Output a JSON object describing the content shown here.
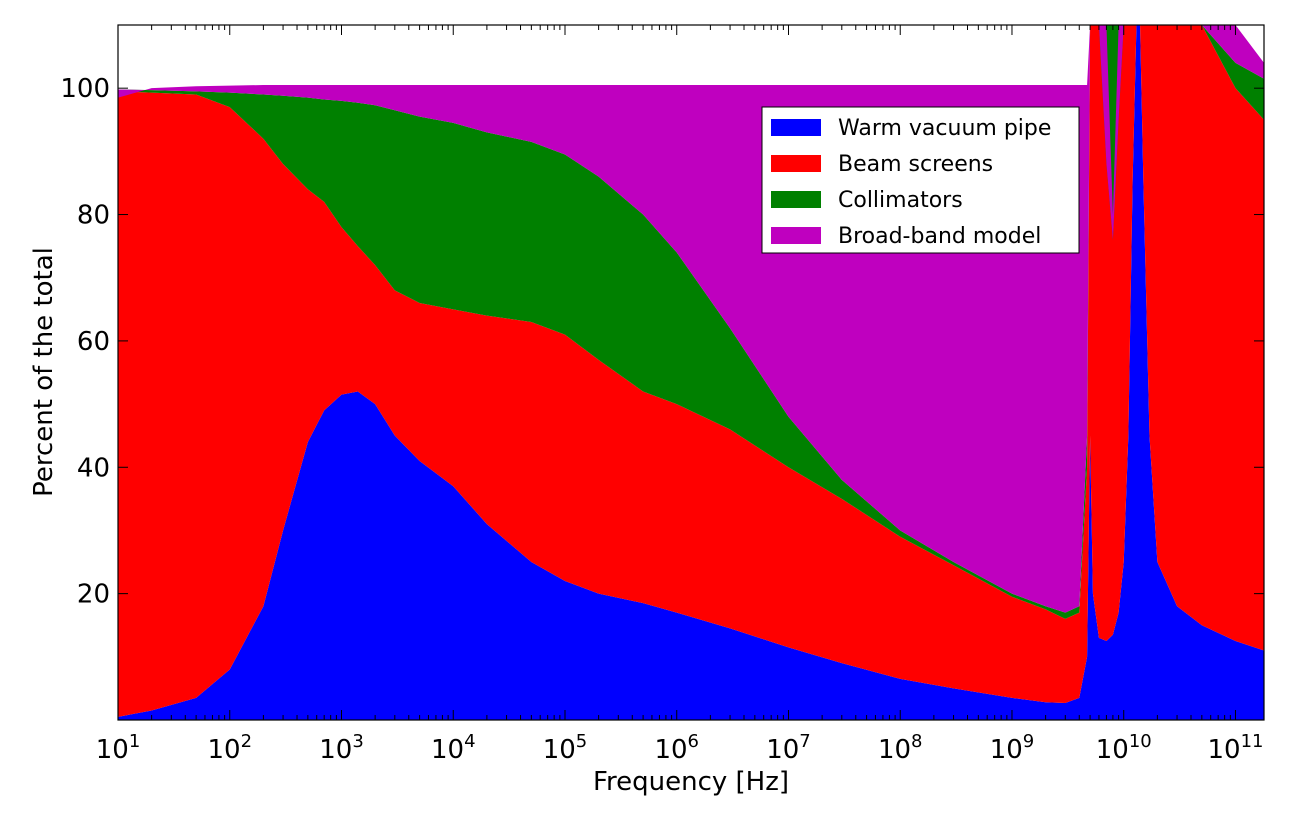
{
  "chart_data": {
    "type": "area",
    "stacked": true,
    "title": "",
    "xlabel": "Frequency [Hz]",
    "ylabel": "Percent of the total",
    "xscale": "log",
    "xlim": [
      10,
      180000000000
    ],
    "ylim": [
      0,
      110
    ],
    "grid": false,
    "legend_position": "upper-right",
    "x_ticks": [
      {
        "base": "10",
        "exp": "1"
      },
      {
        "base": "10",
        "exp": "2"
      },
      {
        "base": "10",
        "exp": "3"
      },
      {
        "base": "10",
        "exp": "4"
      },
      {
        "base": "10",
        "exp": "5"
      },
      {
        "base": "10",
        "exp": "6"
      },
      {
        "base": "10",
        "exp": "7"
      },
      {
        "base": "10",
        "exp": "8"
      },
      {
        "base": "10",
        "exp": "9"
      },
      {
        "base": "10",
        "exp": "10"
      },
      {
        "base": "10",
        "exp": "11"
      }
    ],
    "y_ticks": [
      "20",
      "40",
      "60",
      "80",
      "100"
    ],
    "x": [
      10,
      20,
      50,
      100,
      200,
      300,
      500,
      700,
      1000,
      1400,
      2000,
      3000,
      5000,
      10000,
      20000,
      50000,
      100000,
      200000,
      500000,
      1000000,
      3000000,
      10000000,
      30000000,
      100000000,
      300000000,
      1000000000,
      2000000000,
      3000000000,
      4000000000,
      4700000000,
      5000000000,
      5300000000,
      6000000000,
      7000000000,
      8000000000,
      9000000000,
      10000000000,
      11000000000,
      12000000000,
      13000000000,
      14000000000,
      15000000000,
      17000000000,
      20000000000,
      30000000000,
      50000000000,
      100000000000,
      180000000000
    ],
    "series": [
      {
        "name": "Warm vacuum pipe",
        "color": "#0000ff",
        "cumulative": [
          0.5,
          1.5,
          3.5,
          8,
          18,
          30,
          44,
          49,
          51.5,
          52,
          50,
          45,
          41,
          37,
          31,
          25,
          22,
          20,
          18.5,
          17,
          14.5,
          11.5,
          9,
          6.5,
          5,
          3.5,
          2.8,
          2.7,
          3.5,
          10,
          45,
          20,
          13,
          12.5,
          13.5,
          17,
          25,
          45,
          85,
          110,
          110,
          85,
          45,
          25,
          18,
          15,
          12.5,
          11
        ]
      },
      {
        "name": "Beam screens",
        "color": "#ff0000",
        "cumulative": [
          99.5,
          99.3,
          99,
          97,
          92,
          88,
          84,
          82,
          78,
          75,
          72,
          68,
          66,
          65,
          64,
          63,
          61,
          57,
          52,
          50,
          46,
          40,
          35,
          29,
          24.5,
          19.5,
          17.5,
          16,
          17,
          40,
          110,
          110,
          110,
          110,
          110,
          110,
          110,
          110,
          110,
          110,
          110,
          110,
          110,
          110,
          110,
          110,
          100,
          95
        ]
      },
      {
        "name": "Collimators",
        "color": "#008000",
        "cumulative": [
          99.8,
          99.7,
          99.5,
          99.3,
          99,
          98.8,
          98.5,
          98.2,
          98,
          97.7,
          97.3,
          96.5,
          95.5,
          94.5,
          93,
          91.5,
          89.5,
          86,
          80,
          74,
          62,
          48,
          38,
          30,
          25,
          20,
          18,
          17,
          18,
          45,
          110,
          110,
          110,
          88,
          76,
          95,
          110,
          110,
          110,
          110,
          110,
          110,
          110,
          110,
          110,
          110,
          104,
          101.5
        ]
      },
      {
        "name": "Broad-band model",
        "color": "#bf00bf",
        "cumulative": [
          98.5,
          100,
          100.3,
          100.4,
          100.5,
          100.5,
          100.5,
          100.5,
          100.5,
          100.5,
          100.5,
          100.5,
          100.5,
          100.5,
          100.5,
          100.5,
          100.5,
          100.5,
          100.5,
          100.5,
          100.5,
          100.5,
          100.5,
          100.5,
          100.5,
          100.5,
          100.5,
          100.5,
          100.5,
          100.5,
          110,
          110,
          110,
          110,
          80,
          110,
          110,
          110,
          110,
          110,
          110,
          110,
          110,
          110,
          110,
          110,
          110,
          104
        ]
      }
    ]
  }
}
